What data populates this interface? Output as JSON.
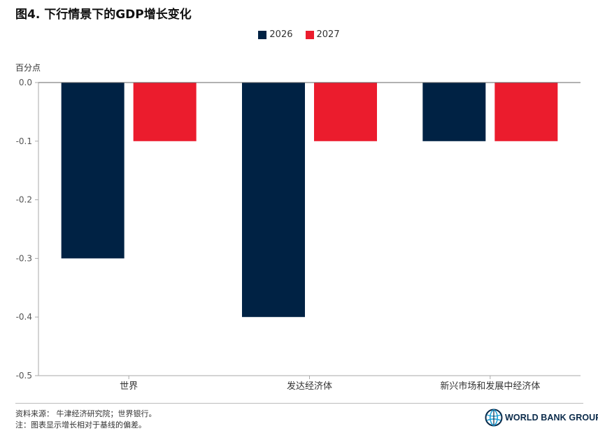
{
  "title": "图4. 下行情景下的GDP增长变化",
  "colors": {
    "series_2026": "#002244",
    "series_2027": "#eb1c2d",
    "axis": "#aaaaaa",
    "zero_line": "#666666",
    "tick_text": "#555555"
  },
  "chart_data": {
    "type": "bar",
    "title": "图4. 下行情景下的GDP增长变化",
    "xlabel": "",
    "ylabel": "百分点",
    "categories": [
      "世界",
      "发达经济体",
      "新兴市场和发展中经济体"
    ],
    "series": [
      {
        "name": "2026",
        "values": [
          -0.3,
          -0.4,
          -0.1
        ]
      },
      {
        "name": "2027",
        "values": [
          -0.1,
          -0.1,
          -0.1
        ]
      }
    ],
    "ylim": [
      -0.5,
      0.0
    ],
    "yticks": [
      "0.0",
      "-0.1",
      "-0.2",
      "-0.3",
      "-0.4",
      "-0.5"
    ],
    "grid": false,
    "legend_position": "top-center"
  },
  "legend": [
    {
      "label": "2026",
      "icon": "square-swatch"
    },
    {
      "label": "2027",
      "icon": "square-swatch"
    }
  ],
  "footer": {
    "source": "资料来源： 牛津经济研究院；世界银行。",
    "note": "注：图表显示增长相对于基线的偏差。"
  },
  "logo": {
    "text": "WORLD BANK GROUP",
    "icon": "world-globe-icon"
  }
}
